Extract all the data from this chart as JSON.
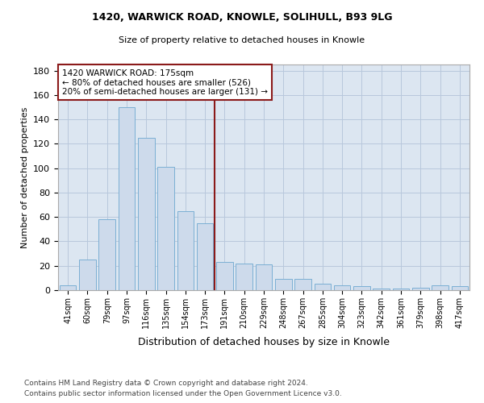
{
  "title1": "1420, WARWICK ROAD, KNOWLE, SOLIHULL, B93 9LG",
  "title2": "Size of property relative to detached houses in Knowle",
  "xlabel": "Distribution of detached houses by size in Knowle",
  "ylabel": "Number of detached properties",
  "categories": [
    "41sqm",
    "60sqm",
    "79sqm",
    "97sqm",
    "116sqm",
    "135sqm",
    "154sqm",
    "173sqm",
    "191sqm",
    "210sqm",
    "229sqm",
    "248sqm",
    "267sqm",
    "285sqm",
    "304sqm",
    "323sqm",
    "342sqm",
    "361sqm",
    "379sqm",
    "398sqm",
    "417sqm"
  ],
  "values": [
    4,
    25,
    58,
    150,
    125,
    101,
    65,
    55,
    23,
    22,
    21,
    9,
    9,
    5,
    4,
    3,
    1,
    1,
    2,
    4,
    3
  ],
  "bar_color": "#cddaeb",
  "bar_edge_color": "#7bafd4",
  "grid_color": "#b8c8dc",
  "background_color": "#dce6f1",
  "vline_color": "#8b1a1a",
  "annotation_title": "1420 WARWICK ROAD: 175sqm",
  "annotation_line1": "← 80% of detached houses are smaller (526)",
  "annotation_line2": "20% of semi-detached houses are larger (131) →",
  "annotation_box_color": "#8b1a1a",
  "ylim": [
    0,
    185
  ],
  "yticks": [
    0,
    20,
    40,
    60,
    80,
    100,
    120,
    140,
    160,
    180
  ],
  "footer1": "Contains HM Land Registry data © Crown copyright and database right 2024.",
  "footer2": "Contains public sector information licensed under the Open Government Licence v3.0."
}
